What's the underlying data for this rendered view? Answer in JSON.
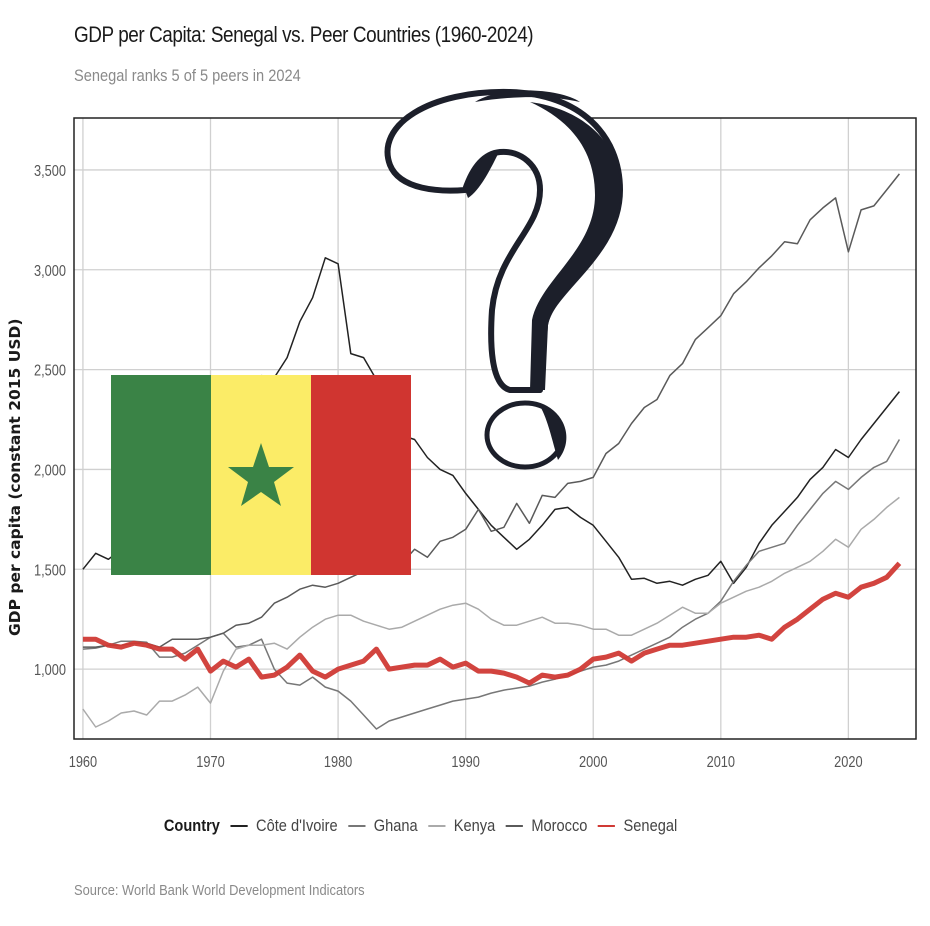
{
  "title": "GDP per Capita: Senegal vs. Peer Countries (1960-2024)",
  "subtitle": "Senegal ranks 5 of 5 peers in 2024",
  "source": "Source: World Bank World Development Indicators",
  "legend": {
    "title": "Country",
    "items": [
      {
        "label": "Côte d'Ivoire",
        "color": "#222222"
      },
      {
        "label": "Ghana",
        "color": "#777777"
      },
      {
        "label": "Kenya",
        "color": "#aaaaaa"
      },
      {
        "label": "Morocco",
        "color": "#5a5a5a"
      },
      {
        "label": "Senegal",
        "color": "#d03a35"
      }
    ]
  },
  "overlays": {
    "flag": {
      "name": "Senegal flag",
      "colors": [
        "#3a8346",
        "#fbec67",
        "#d03530"
      ],
      "star_color": "#3a8346"
    },
    "question_mark": {
      "name": "sketched question mark",
      "color": "#1c1f2a"
    }
  },
  "chart_data": {
    "type": "line",
    "title": "GDP per Capita: Senegal vs. Peer Countries (1960-2024)",
    "subtitle": "Senegal ranks 5 of 5 peers in 2024",
    "xlabel": "",
    "ylabel": "GDP per capita (constant 2015 USD)",
    "xlim": [
      1959.3,
      2025.3
    ],
    "ylim": [
      650,
      3760
    ],
    "xticks": [
      1960,
      1970,
      1980,
      1990,
      2000,
      2010,
      2020
    ],
    "xtick_labels": [
      "1960",
      "1970",
      "1980",
      "1990",
      "2000",
      "2010",
      "2020"
    ],
    "yticks": [
      1000,
      1500,
      2000,
      2500,
      3000,
      3500
    ],
    "ytick_labels": [
      "1,000",
      "1,500",
      "2,000",
      "2,500",
      "3,000",
      "3,500"
    ],
    "grid": true,
    "legend_position": "bottom",
    "x_start": 1960,
    "x_end": 2024,
    "series": [
      {
        "name": "Côte d'Ivoire",
        "color": "#222222",
        "width": 1.5,
        "values": [
          1500,
          1580,
          1550,
          1600,
          1760,
          1720,
          1780,
          1830,
          2000,
          2080,
          2200,
          2300,
          2440,
          2430,
          2470,
          2460,
          2560,
          2740,
          2860,
          3060,
          3030,
          2580,
          2560,
          2450,
          2290,
          2170,
          2150,
          2060,
          2000,
          1970,
          1880,
          1800,
          1720,
          1660,
          1600,
          1650,
          1720,
          1800,
          1810,
          1760,
          1720,
          1640,
          1560,
          1450,
          1455,
          1430,
          1440,
          1420,
          1450,
          1470,
          1540,
          1430,
          1510,
          1630,
          1720,
          1790,
          1860,
          1950,
          2010,
          2100,
          2060,
          2150,
          2230,
          2310,
          2390
        ]
      },
      {
        "name": "Ghana",
        "color": "#777777",
        "width": 1.5,
        "values": [
          1100,
          1105,
          1120,
          1140,
          1140,
          1135,
          1060,
          1060,
          1080,
          1120,
          1160,
          1180,
          1110,
          1120,
          1150,
          1000,
          930,
          920,
          960,
          910,
          890,
          840,
          770,
          700,
          740,
          760,
          780,
          800,
          820,
          840,
          850,
          860,
          880,
          895,
          905,
          915,
          935,
          950,
          970,
          990,
          1010,
          1020,
          1040,
          1070,
          1100,
          1130,
          1160,
          1210,
          1250,
          1280,
          1340,
          1440,
          1520,
          1590,
          1610,
          1630,
          1720,
          1800,
          1880,
          1940,
          1900,
          1960,
          2010,
          2040,
          2150
        ]
      },
      {
        "name": "Kenya",
        "color": "#aaaaaa",
        "width": 1.5,
        "values": [
          800,
          710,
          740,
          780,
          790,
          770,
          840,
          840,
          870,
          910,
          830,
          990,
          1100,
          1120,
          1120,
          1130,
          1100,
          1160,
          1210,
          1250,
          1270,
          1270,
          1240,
          1220,
          1200,
          1210,
          1240,
          1270,
          1300,
          1320,
          1330,
          1300,
          1250,
          1220,
          1220,
          1240,
          1260,
          1230,
          1230,
          1220,
          1200,
          1200,
          1170,
          1170,
          1200,
          1230,
          1270,
          1310,
          1280,
          1280,
          1330,
          1360,
          1390,
          1410,
          1440,
          1480,
          1510,
          1540,
          1590,
          1650,
          1610,
          1700,
          1750,
          1810,
          1860
        ]
      },
      {
        "name": "Morocco",
        "color": "#5a5a5a",
        "width": 1.5,
        "values": [
          1110,
          1110,
          1120,
          1120,
          1130,
          1130,
          1110,
          1150,
          1150,
          1150,
          1160,
          1180,
          1220,
          1230,
          1260,
          1330,
          1360,
          1400,
          1420,
          1410,
          1430,
          1460,
          1490,
          1480,
          1500,
          1530,
          1600,
          1560,
          1640,
          1660,
          1700,
          1800,
          1690,
          1710,
          1830,
          1730,
          1870,
          1860,
          1930,
          1940,
          1960,
          2080,
          2130,
          2230,
          2310,
          2350,
          2470,
          2530,
          2650,
          2710,
          2770,
          2880,
          2940,
          3010,
          3070,
          3140,
          3130,
          3250,
          3310,
          3360,
          3090,
          3300,
          3320,
          3400,
          3480
        ]
      },
      {
        "name": "Senegal",
        "color": "#d03a35",
        "width": 5,
        "values": [
          1150,
          1150,
          1120,
          1110,
          1130,
          1120,
          1100,
          1100,
          1050,
          1100,
          990,
          1040,
          1010,
          1050,
          960,
          970,
          1010,
          1070,
          990,
          960,
          1000,
          1020,
          1040,
          1100,
          1000,
          1010,
          1020,
          1020,
          1050,
          1010,
          1030,
          990,
          990,
          980,
          960,
          930,
          970,
          960,
          970,
          1000,
          1050,
          1060,
          1080,
          1040,
          1080,
          1100,
          1120,
          1120,
          1130,
          1140,
          1150,
          1160,
          1160,
          1170,
          1150,
          1210,
          1250,
          1300,
          1350,
          1380,
          1360,
          1410,
          1430,
          1460,
          1530
        ]
      }
    ]
  }
}
